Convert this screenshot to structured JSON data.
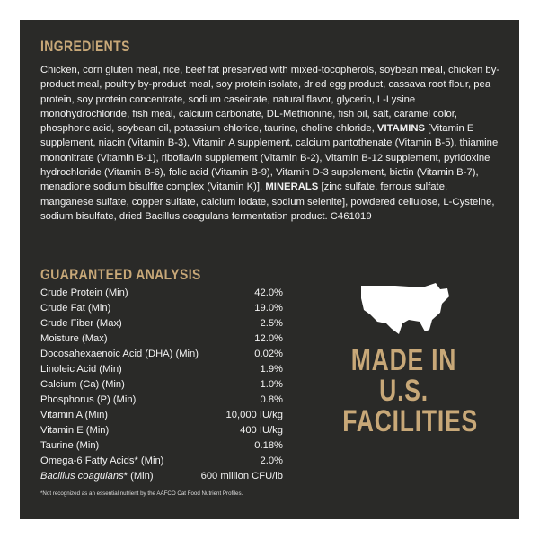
{
  "ingredients": {
    "title": "INGREDIENTS",
    "text_before": "Chicken, corn gluten meal, rice, beef fat preserved with mixed-tocopherols, soybean meal, chicken by-product meal, poultry by-product meal, soy protein isolate, dried egg product, cassava root flour, pea protein, soy protein concentrate, sodium caseinate, natural flavor, glycerin, L-Lysine monohydrochloride, fish meal, calcium carbonate, DL-Methionine, fish oil, salt, caramel color, phosphoric acid, soybean oil, potassium chloride, taurine, choline chloride,",
    "vitamins_label": "VITAMINS",
    "vitamins_text": "[Vitamin E supplement, niacin (Vitamin B-3), Vitamin A supplement, calcium pantothenate (Vitamin B-5), thiamine mononitrate (Vitamin B-1), riboflavin supplement (Vitamin B-2), Vitamin B-12 supplement, pyridoxine hydrochloride (Vitamin B-6), folic acid (Vitamin B-9), Vitamin D-3 supplement, biotin (Vitamin B-7), menadione sodium bisulfite complex (Vitamin K)],",
    "minerals_label": "MINERALS",
    "minerals_text": "[zinc sulfate, ferrous sulfate, manganese sulfate, copper sulfate, calcium iodate, sodium selenite], powdered cellulose, L-Cysteine, sodium bisulfate, dried Bacillus coagulans fermentation product. C461019"
  },
  "analysis": {
    "title": "GUARANTEED ANALYSIS",
    "rows": [
      {
        "name": "Crude Protein (Min)",
        "value": "42.0%"
      },
      {
        "name": "Crude Fat (Min)",
        "value": "19.0%"
      },
      {
        "name": "Crude Fiber (Max)",
        "value": "2.5%"
      },
      {
        "name": "Moisture (Max)",
        "value": "12.0%"
      },
      {
        "name": "Docosahexaenoic Acid (DHA) (Min)",
        "value": "0.02%"
      },
      {
        "name": "Linoleic Acid (Min)",
        "value": "1.9%"
      },
      {
        "name": "Calcium (Ca) (Min)",
        "value": "1.0%"
      },
      {
        "name": "Phosphorus (P) (Min)",
        "value": "0.8%"
      },
      {
        "name": "Vitamin A (Min)",
        "value": "10,000 IU/kg"
      },
      {
        "name": "Vitamin E (Min)",
        "value": "400 IU/kg"
      },
      {
        "name": "Taurine (Min)",
        "value": "0.18%"
      },
      {
        "name": "Omega-6 Fatty Acids* (Min)",
        "value": "2.0%"
      },
      {
        "name_italic": "Bacillus coagulans",
        "name": "* (Min)",
        "value": "600 million CFU/lb"
      }
    ],
    "footnote": "*Not recognized as an essential nutrient by the AAFCO Cat Food Nutrient Profiles."
  },
  "badge": {
    "lines": [
      "MADE IN",
      "U.S.",
      "FACILITIES"
    ]
  }
}
